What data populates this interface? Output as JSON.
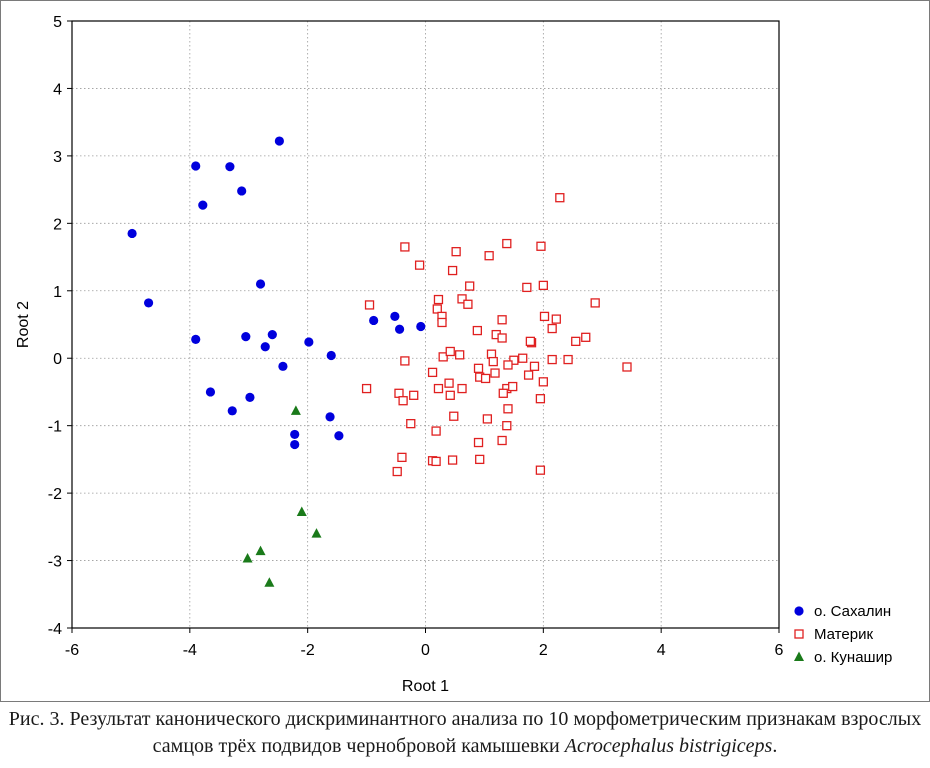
{
  "caption": {
    "text": "Рис. 3. Результат канонического дискриминантного анализа по 10 морфометрическим признакам взрослых самцов трёх подвидов чернобровой камышевки ",
    "species": "Acrocephalus bistrigiceps",
    "end": "."
  },
  "chart_data": {
    "type": "scatter",
    "xlabel": "Root 1",
    "ylabel": "Root 2",
    "xlim": [
      -6,
      6
    ],
    "ylim": [
      -4,
      5
    ],
    "xticks": [
      -6,
      -4,
      -2,
      0,
      2,
      4,
      6
    ],
    "yticks": [
      -4,
      -3,
      -2,
      -1,
      0,
      1,
      2,
      3,
      4,
      5
    ],
    "grid": true,
    "legend_position": "bottom-right",
    "series": [
      {
        "name": "о. Сахалин",
        "marker": "circle",
        "color": "#0000dd",
        "points": [
          [
            -4.98,
            1.85
          ],
          [
            -4.7,
            0.82
          ],
          [
            -3.9,
            2.85
          ],
          [
            -3.78,
            2.27
          ],
          [
            -3.32,
            2.84
          ],
          [
            -3.12,
            2.48
          ],
          [
            -2.48,
            3.22
          ],
          [
            -3.9,
            0.28
          ],
          [
            -3.65,
            -0.5
          ],
          [
            -3.28,
            -0.78
          ],
          [
            -3.05,
            0.32
          ],
          [
            -2.98,
            -0.58
          ],
          [
            -2.8,
            1.1
          ],
          [
            -2.72,
            0.17
          ],
          [
            -2.6,
            0.35
          ],
          [
            -2.42,
            -0.12
          ],
          [
            -1.98,
            0.24
          ],
          [
            -1.6,
            0.04
          ],
          [
            -1.62,
            -0.87
          ],
          [
            -1.47,
            -1.15
          ],
          [
            -2.22,
            -1.13
          ],
          [
            -2.22,
            -1.28
          ],
          [
            -0.88,
            0.56
          ],
          [
            -0.52,
            0.62
          ],
          [
            -0.44,
            0.43
          ],
          [
            -0.08,
            0.47
          ]
        ]
      },
      {
        "name": "Материк",
        "marker": "square",
        "color": "#e02020",
        "points": [
          [
            2.28,
            2.38
          ],
          [
            -0.35,
            1.65
          ],
          [
            -0.1,
            1.38
          ],
          [
            0.52,
            1.58
          ],
          [
            0.46,
            1.3
          ],
          [
            1.08,
            1.52
          ],
          [
            1.38,
            1.7
          ],
          [
            1.96,
            1.66
          ],
          [
            2.0,
            1.08
          ],
          [
            1.72,
            1.05
          ],
          [
            0.75,
            1.07
          ],
          [
            -0.95,
            0.79
          ],
          [
            0.22,
            0.87
          ],
          [
            0.2,
            0.73
          ],
          [
            0.28,
            0.62
          ],
          [
            0.28,
            0.53
          ],
          [
            0.62,
            0.88
          ],
          [
            0.72,
            0.8
          ],
          [
            1.3,
            0.57
          ],
          [
            0.88,
            0.41
          ],
          [
            1.2,
            0.35
          ],
          [
            1.3,
            0.3
          ],
          [
            2.02,
            0.62
          ],
          [
            2.22,
            0.58
          ],
          [
            2.15,
            0.44
          ],
          [
            2.88,
            0.82
          ],
          [
            2.72,
            0.31
          ],
          [
            2.55,
            0.25
          ],
          [
            1.8,
            0.23
          ],
          [
            1.78,
            0.25
          ],
          [
            -0.35,
            -0.04
          ],
          [
            0.3,
            0.02
          ],
          [
            0.42,
            0.1
          ],
          [
            0.58,
            0.05
          ],
          [
            1.12,
            0.06
          ],
          [
            1.15,
            -0.05
          ],
          [
            1.5,
            -0.03
          ],
          [
            1.65,
            0.0
          ],
          [
            2.15,
            -0.02
          ],
          [
            2.42,
            -0.02
          ],
          [
            3.42,
            -0.13
          ],
          [
            -1.0,
            -0.45
          ],
          [
            -0.45,
            -0.52
          ],
          [
            -0.38,
            -0.63
          ],
          [
            -0.2,
            -0.55
          ],
          [
            0.12,
            -0.21
          ],
          [
            0.22,
            -0.45
          ],
          [
            0.4,
            -0.37
          ],
          [
            0.42,
            -0.55
          ],
          [
            0.62,
            -0.45
          ],
          [
            0.9,
            -0.15
          ],
          [
            0.92,
            -0.28
          ],
          [
            1.02,
            -0.3
          ],
          [
            1.18,
            -0.22
          ],
          [
            1.4,
            -0.1
          ],
          [
            1.75,
            -0.25
          ],
          [
            1.85,
            -0.12
          ],
          [
            2.0,
            -0.35
          ],
          [
            1.38,
            -0.45
          ],
          [
            1.32,
            -0.52
          ],
          [
            1.4,
            -0.75
          ],
          [
            1.95,
            -0.6
          ],
          [
            -0.25,
            -0.97
          ],
          [
            0.48,
            -0.86
          ],
          [
            1.05,
            -0.9
          ],
          [
            1.38,
            -1.0
          ],
          [
            0.18,
            -1.08
          ],
          [
            0.9,
            -1.25
          ],
          [
            1.3,
            -1.22
          ],
          [
            -0.4,
            -1.47
          ],
          [
            -0.48,
            -1.68
          ],
          [
            0.12,
            -1.52
          ],
          [
            0.18,
            -1.53
          ],
          [
            0.46,
            -1.51
          ],
          [
            0.92,
            -1.5
          ],
          [
            1.95,
            -1.66
          ],
          [
            1.48,
            -0.42
          ]
        ]
      },
      {
        "name": "о. Кунашир",
        "marker": "triangle",
        "color": "#1a7a1a",
        "points": [
          [
            -2.2,
            -0.78
          ],
          [
            -2.1,
            -2.28
          ],
          [
            -1.85,
            -2.6
          ],
          [
            -2.8,
            -2.86
          ],
          [
            -3.02,
            -2.97
          ],
          [
            -2.65,
            -3.33
          ]
        ]
      }
    ]
  }
}
